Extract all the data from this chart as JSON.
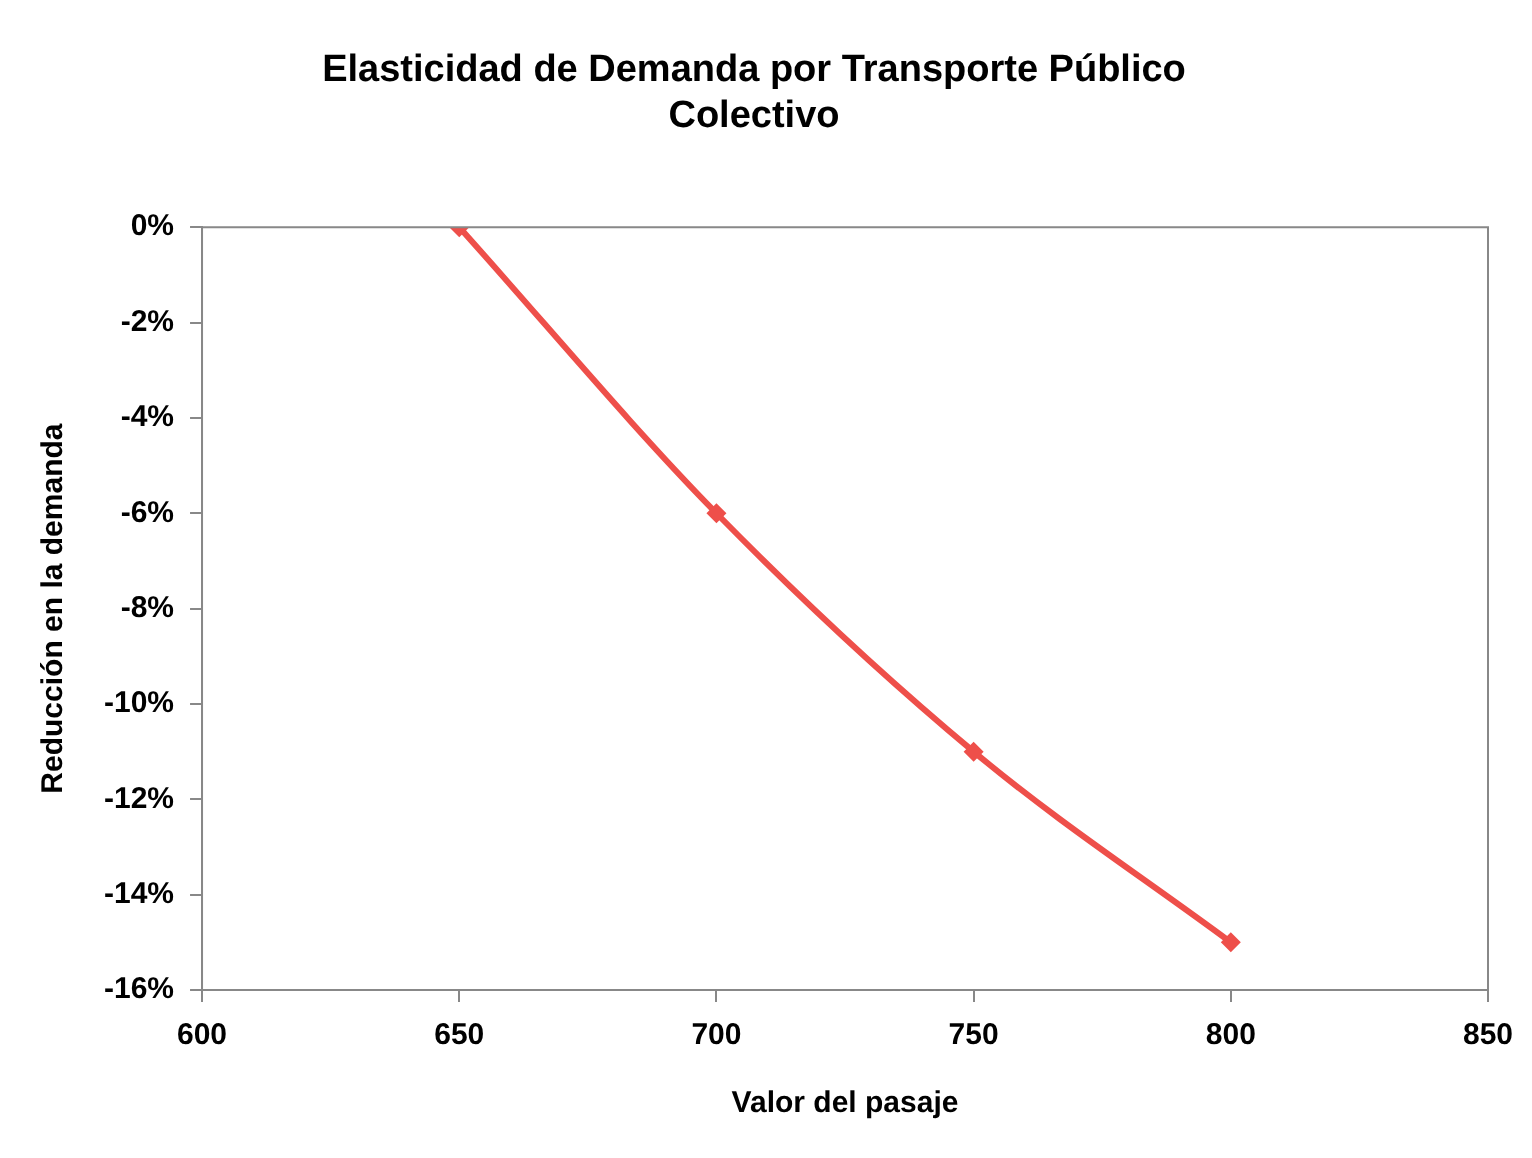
{
  "chart_data": {
    "type": "line",
    "title": "Elasticidad de Demanda por Transporte Público\nColectivo",
    "xlabel": "Valor del pasaje",
    "ylabel": "Reducción en la demanda",
    "x": [
      650,
      700,
      750,
      800
    ],
    "series": [
      {
        "color": "#ee4f4a",
        "values": [
          0,
          -6,
          -11,
          -15
        ]
      }
    ],
    "xlim": [
      600,
      850
    ],
    "xticks": [
      600,
      650,
      700,
      750,
      800,
      850
    ],
    "ylim": [
      -16,
      0
    ],
    "yticks": [
      {
        "value": 0,
        "label": "0%"
      },
      {
        "value": -2,
        "label": "-2%"
      },
      {
        "value": -4,
        "label": "-4%"
      },
      {
        "value": -6,
        "label": "-6%"
      },
      {
        "value": -8,
        "label": "-8%"
      },
      {
        "value": -10,
        "label": "-10%"
      },
      {
        "value": -12,
        "label": "-12%"
      },
      {
        "value": -14,
        "label": "-14%"
      },
      {
        "value": -16,
        "label": "-16%"
      }
    ],
    "grid": false,
    "legend": false,
    "marker": "diamond",
    "line_style": "solid"
  }
}
